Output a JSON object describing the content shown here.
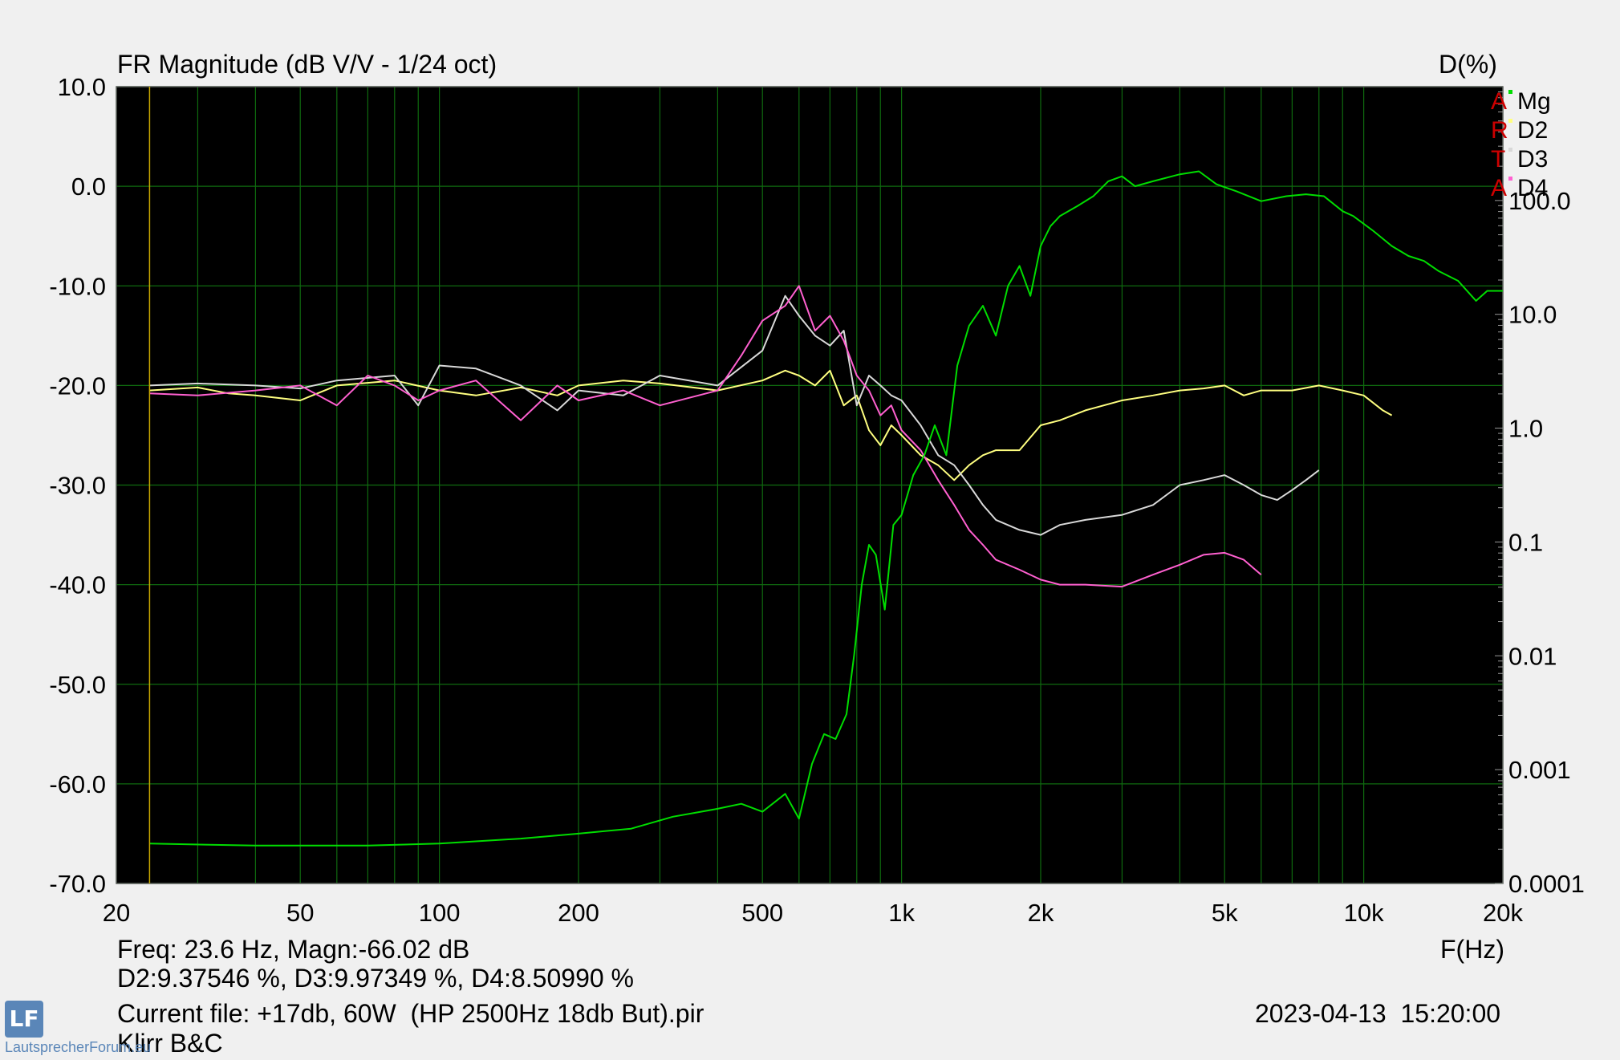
{
  "header": {
    "title": "FR Magnitude (dB V/V - 1/24 oct)",
    "right_axis_title": "D(%)"
  },
  "chart_data": {
    "type": "line",
    "title": "FR Magnitude (dB V/V - 1/24 oct)",
    "xlabel": "F(Hz)",
    "ylabel_right": "D(%)",
    "xscale": "log",
    "xlim": [
      20,
      20000
    ],
    "ylim": [
      -70,
      10
    ],
    "yright_scale": "log",
    "yright_lim": [
      0.0001,
      1000
    ],
    "grid": true,
    "x_ticks": [
      "20",
      "50",
      "100",
      "200",
      "500",
      "1k",
      "2k",
      "5k",
      "10k",
      "20k"
    ],
    "y_ticks": [
      "10.0",
      "0.0",
      "-10.0",
      "-20.0",
      "-30.0",
      "-40.0",
      "-50.0",
      "-60.0",
      "-70.0"
    ],
    "yright_ticks": [
      "100.0",
      "10.0",
      "1.0",
      "0.1",
      "0.01",
      "0.001",
      "0.0001"
    ],
    "legend_placement": "top-right",
    "legend_prefix": [
      "A",
      "R",
      "T",
      "A"
    ],
    "cursor_x": 23.6,
    "series": [
      {
        "name": "Mg",
        "axis": "left",
        "color": "#00dd00",
        "x": [
          23.6,
          40,
          70,
          100,
          150,
          200,
          260,
          320,
          400,
          450,
          500,
          560,
          600,
          640,
          680,
          720,
          760,
          790,
          820,
          850,
          880,
          920,
          960,
          1000,
          1060,
          1120,
          1180,
          1250,
          1320,
          1400,
          1500,
          1600,
          1700,
          1800,
          1900,
          2000,
          2100,
          2200,
          2400,
          2600,
          2800,
          3000,
          3200,
          3500,
          4000,
          4400,
          4800,
          5300,
          6000,
          6800,
          7500,
          8200,
          9000,
          9500,
          10500,
          11500,
          12500,
          13500,
          14500,
          16000,
          17500,
          18500,
          19500,
          20000
        ],
        "y": [
          -66.0,
          -66.2,
          -66.2,
          -66.0,
          -65.5,
          -65.0,
          -64.5,
          -63.3,
          -62.5,
          -62.0,
          -62.8,
          -61.0,
          -63.5,
          -58,
          -55,
          -55.5,
          -53,
          -47,
          -40,
          -36,
          -37,
          -42.5,
          -34,
          -33,
          -29,
          -27,
          -24,
          -27,
          -18,
          -14,
          -12,
          -15,
          -10,
          -8,
          -11,
          -6,
          -4,
          -3,
          -2,
          -1,
          0.5,
          1.0,
          0.0,
          0.5,
          1.2,
          1.5,
          0.2,
          -0.5,
          -1.5,
          -1.0,
          -0.8,
          -1.0,
          -2.5,
          -3.0,
          -4.5,
          -6.0,
          -7.0,
          -7.5,
          -8.5,
          -9.5,
          -11.5,
          -10.5,
          -10.5,
          -10.5
        ]
      },
      {
        "name": "D2",
        "axis": "right",
        "color": "#ffff80",
        "x": [
          23.6,
          30,
          35,
          40,
          50,
          60,
          80,
          100,
          120,
          150,
          180,
          200,
          250,
          300,
          400,
          500,
          560,
          600,
          650,
          700,
          750,
          800,
          850,
          900,
          950,
          1000,
          1100,
          1200,
          1300,
          1400,
          1500,
          1600,
          1800,
          2000,
          2200,
          2500,
          3000,
          3500,
          4000,
          4500,
          5000,
          5500,
          6000,
          7000,
          8000,
          9000,
          10000,
          11000,
          11500
        ],
        "y": [
          -20.5,
          -20.2,
          -20.8,
          -21.0,
          -21.5,
          -20.0,
          -19.5,
          -20.5,
          -21.0,
          -20.2,
          -21.0,
          -20.0,
          -19.5,
          -19.8,
          -20.5,
          -19.5,
          -18.5,
          -19.0,
          -20.0,
          -18.5,
          -22.0,
          -21.0,
          -24.5,
          -26.0,
          -24.0,
          -25.0,
          -27.0,
          -28.0,
          -29.5,
          -28.0,
          -27.0,
          -26.5,
          -26.5,
          -24.0,
          -23.5,
          -22.5,
          -21.5,
          -21.0,
          -20.5,
          -20.3,
          -20.0,
          -21.0,
          -20.5,
          -20.5,
          -20.0,
          -20.5,
          -21.0,
          -22.5,
          -23.0
        ]
      },
      {
        "name": "D3",
        "axis": "right",
        "color": "#d8d8d8",
        "x": [
          23.6,
          30,
          40,
          50,
          60,
          80,
          90,
          100,
          120,
          150,
          180,
          200,
          250,
          300,
          400,
          500,
          560,
          600,
          650,
          700,
          750,
          800,
          850,
          900,
          950,
          1000,
          1100,
          1200,
          1300,
          1400,
          1500,
          1600,
          1800,
          2000,
          2200,
          2500,
          3000,
          3500,
          4000,
          4500,
          5000,
          5500,
          6000,
          6500,
          7000,
          7500,
          8000
        ],
        "y": [
          -20.0,
          -19.8,
          -20.0,
          -20.3,
          -19.5,
          -19.0,
          -22.0,
          -18.0,
          -18.3,
          -20.0,
          -22.5,
          -20.5,
          -21.0,
          -19.0,
          -20.0,
          -16.5,
          -11.0,
          -13.0,
          -15.0,
          -16.0,
          -14.5,
          -22.0,
          -19.0,
          -20.0,
          -21.0,
          -21.5,
          -24.0,
          -27.0,
          -28.0,
          -30.0,
          -32.0,
          -33.5,
          -34.5,
          -35.0,
          -34.0,
          -33.5,
          -33.0,
          -32.0,
          -30.0,
          -29.5,
          -29.0,
          -30.0,
          -31.0,
          -31.5,
          -30.5,
          -29.5,
          -28.5
        ]
      },
      {
        "name": "D4",
        "axis": "right",
        "color": "#ff60d0",
        "x": [
          23.6,
          30,
          40,
          50,
          60,
          70,
          80,
          90,
          100,
          120,
          150,
          180,
          200,
          250,
          300,
          400,
          450,
          500,
          560,
          600,
          650,
          700,
          750,
          800,
          850,
          900,
          950,
          1000,
          1100,
          1200,
          1300,
          1400,
          1500,
          1600,
          1800,
          2000,
          2200,
          2500,
          3000,
          3500,
          4000,
          4500,
          5000,
          5500,
          6000
        ],
        "y": [
          -20.8,
          -21.0,
          -20.5,
          -20.0,
          -22.0,
          -19.0,
          -20.0,
          -21.5,
          -20.5,
          -19.5,
          -23.5,
          -20.0,
          -21.5,
          -20.5,
          -22.0,
          -20.5,
          -17.0,
          -13.5,
          -12.0,
          -10.0,
          -14.5,
          -13.0,
          -15.5,
          -19.0,
          -20.5,
          -23.0,
          -22.0,
          -24.5,
          -26.5,
          -29.5,
          -32.0,
          -34.5,
          -36.0,
          -37.5,
          -38.5,
          -39.5,
          -40.0,
          -40.0,
          -40.2,
          -39.0,
          -38.0,
          -37.0,
          -36.8,
          -37.5,
          -39.0
        ]
      }
    ]
  },
  "footer": {
    "readout_line1": "Freq: 23.6 Hz, Magn:-66.02 dB",
    "readout_line2": "D2:9.37546 %, D3:9.97349 %, D4:8.50990 %",
    "current_file": "Current file: +17db, 60W  (HP 2500Hz 18db But).pir",
    "timestamp": "2023-04-13  15:20:00",
    "note": "Klirr B&C",
    "x_axis_label": "F(Hz)"
  },
  "watermark": {
    "logo_text": "LF",
    "site": "LautsprecherForum.eu"
  }
}
